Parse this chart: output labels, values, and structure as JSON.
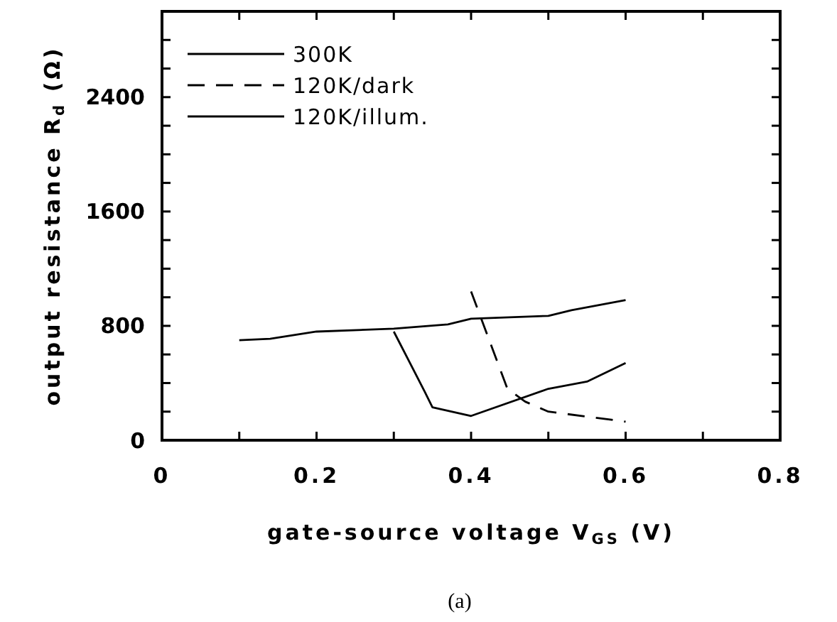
{
  "chart_data": {
    "type": "line",
    "xlabel": "gate-source voltage V$_{GS}$  (V)",
    "ylabel": "output resistance R$_{d}$  (Ω)",
    "annotations": [
      "(a)"
    ],
    "xlim": [
      0,
      0.8
    ],
    "ylim": [
      0,
      3000
    ],
    "xticks": [
      0,
      {
        "value": 0.1,
        "label": null
      },
      {
        "value": 0.2,
        "label": "0.2"
      },
      {
        "value": 0.3,
        "label": null
      },
      {
        "value": 0.4,
        "label": "0.4"
      },
      {
        "value": 0.5,
        "label": null
      },
      {
        "value": 0.6,
        "label": "0.6"
      },
      {
        "value": 0.7,
        "label": null
      },
      {
        "value": 0.8,
        "label": "0.8"
      }
    ],
    "yticks": [
      0,
      {
        "value": 200,
        "label": null
      },
      {
        "value": 400,
        "label": null
      },
      {
        "value": 600,
        "label": null
      },
      800,
      {
        "value": 1000,
        "label": null
      },
      {
        "value": 1200,
        "label": null
      },
      {
        "value": 1400,
        "label": null
      },
      1600,
      {
        "value": 1800,
        "label": null
      },
      {
        "value": 2000,
        "label": null
      },
      {
        "value": 2200,
        "label": null
      },
      2400,
      {
        "value": 2600,
        "label": null
      },
      {
        "value": 2800,
        "label": null
      }
    ],
    "grid": false,
    "legend": "top left",
    "series": [
      {
        "name": "300K",
        "color": "#000000",
        "line_style": "solid",
        "x": [
          0.1,
          0.14,
          0.2,
          0.3,
          0.37,
          0.4,
          0.5,
          0.53,
          0.6
        ],
        "values": [
          700,
          710,
          760,
          780,
          810,
          850,
          870,
          910,
          980
        ]
      },
      {
        "name": "120K/dark",
        "color": "#000000",
        "line_style": "dashed",
        "x": [
          0.4,
          0.447,
          0.47,
          0.5,
          0.6
        ],
        "values": [
          1040,
          360,
          270,
          200,
          130
        ]
      },
      {
        "name": "120K/illum.",
        "color": "#000000",
        "line_style": "solid",
        "x": [
          0.3,
          0.34,
          0.35,
          0.4,
          0.5,
          0.55,
          0.6
        ],
        "values": [
          760,
          340,
          230,
          170,
          360,
          410,
          540
        ]
      }
    ]
  }
}
